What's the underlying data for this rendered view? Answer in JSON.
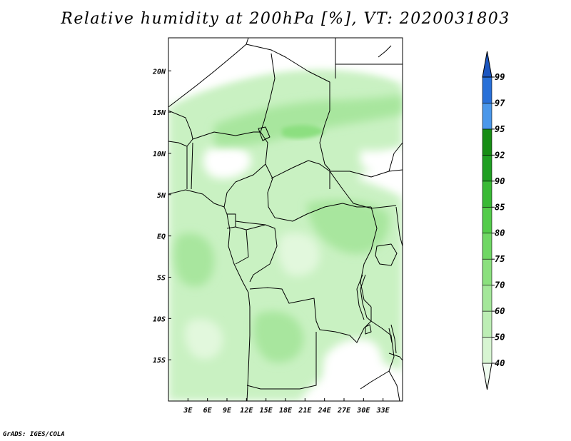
{
  "title": "Relative humidity at 200hPa [%], VT: 2020031803",
  "credit": "GrADS: IGES/COLA",
  "map": {
    "lon_range": [
      0,
      36
    ],
    "lat_range": [
      -20,
      24
    ],
    "lat_ticks": [
      {
        "value": 20,
        "label": "20N"
      },
      {
        "value": 15,
        "label": "15N"
      },
      {
        "value": 10,
        "label": "10N"
      },
      {
        "value": 5,
        "label": "5N"
      },
      {
        "value": 0,
        "label": "EQ"
      },
      {
        "value": -5,
        "label": "5S"
      },
      {
        "value": -10,
        "label": "10S"
      },
      {
        "value": -15,
        "label": "15S"
      }
    ],
    "lon_ticks": [
      {
        "value": 3,
        "label": "3E"
      },
      {
        "value": 6,
        "label": "6E"
      },
      {
        "value": 9,
        "label": "9E"
      },
      {
        "value": 12,
        "label": "12E"
      },
      {
        "value": 15,
        "label": "15E"
      },
      {
        "value": 18,
        "label": "18E"
      },
      {
        "value": 21,
        "label": "21E"
      },
      {
        "value": 24,
        "label": "24E"
      },
      {
        "value": 27,
        "label": "27E"
      },
      {
        "value": 30,
        "label": "30E"
      },
      {
        "value": 33,
        "label": "33E"
      }
    ]
  },
  "colorbar": {
    "levels": [
      "40",
      "50",
      "60",
      "70",
      "75",
      "80",
      "85",
      "90",
      "92",
      "95",
      "97",
      "99"
    ],
    "colors": [
      "#f0fcf0",
      "#d7f5d2",
      "#bdeeb5",
      "#a4e79a",
      "#8be07e",
      "#6fd764",
      "#53cc4a",
      "#39b935",
      "#1f9f22",
      "#168d14",
      "#4a97ea",
      "#2870d8",
      "#1c56c0"
    ]
  }
}
